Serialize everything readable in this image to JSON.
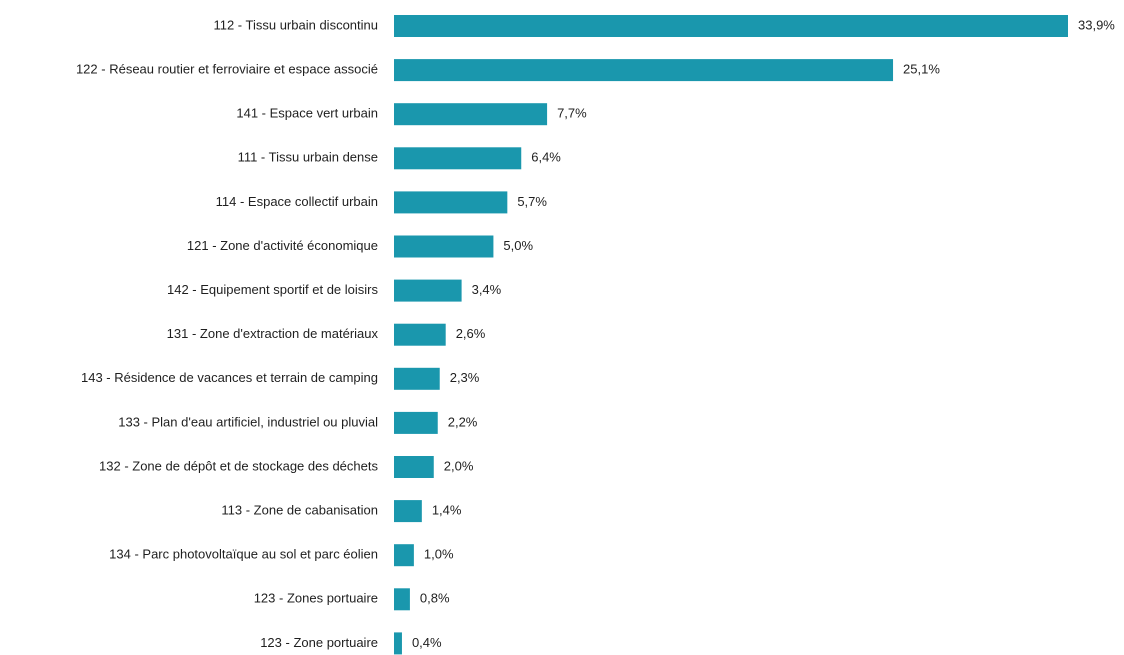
{
  "colors": {
    "bar": "#1a97ad",
    "text": "#1f1f1f",
    "background": "#ffffff"
  },
  "chart_data": {
    "type": "bar",
    "orientation": "horizontal",
    "title": "",
    "xlabel": "",
    "ylabel": "",
    "grid": false,
    "legend": "none",
    "unit": "%",
    "xlim": [
      0,
      33.9
    ],
    "categories": [
      "112 - Tissu urbain discontinu",
      "122 - Réseau routier et ferroviaire et espace associé",
      "141 - Espace vert urbain",
      "111 - Tissu urbain dense",
      "114 - Espace collectif urbain",
      "121 - Zone d'activité économique",
      "142 - Equipement sportif et de loisirs",
      "131 - Zone d'extraction de matériaux",
      "143 - Résidence de vacances et terrain de camping",
      "133 - Plan d'eau artificiel, industriel ou pluvial",
      "132 - Zone de dépôt et de stockage des déchets",
      "113 - Zone de cabanisation",
      "134 - Parc photovoltaïque au sol et parc éolien",
      "123 - Zones portuaire",
      "123 - Zone portuaire"
    ],
    "values": [
      33.9,
      25.1,
      7.7,
      6.4,
      5.7,
      5.0,
      3.4,
      2.6,
      2.3,
      2.2,
      2.0,
      1.4,
      1.0,
      0.8,
      0.4
    ],
    "value_labels": [
      "33,9%",
      "25,1%",
      "7,7%",
      "6,4%",
      "5,7%",
      "5,0%",
      "3,4%",
      "2,6%",
      "2,3%",
      "2,2%",
      "2,0%",
      "1,4%",
      "1,0%",
      "0,8%",
      "0,4%"
    ]
  }
}
